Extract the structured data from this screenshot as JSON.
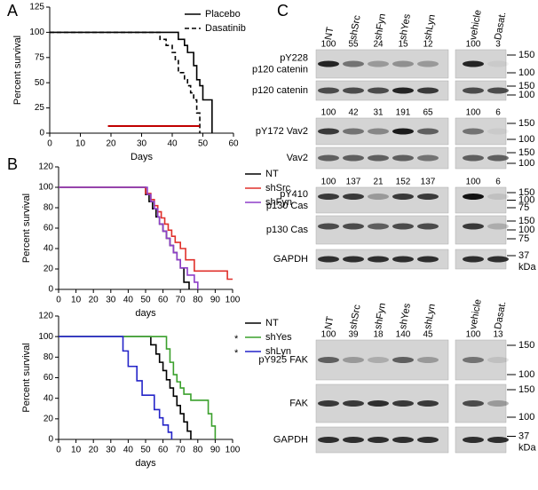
{
  "chart_data": [
    {
      "type": "line",
      "panel": "A",
      "step": true,
      "legend": "upper right",
      "xlabel": "Days",
      "ylabel": "Percent survival",
      "xlim": [
        0,
        60
      ],
      "xticks": [
        0,
        10,
        20,
        30,
        40,
        50,
        60
      ],
      "ylim": [
        0,
        125
      ],
      "yticks": [
        0,
        25,
        50,
        75,
        100,
        125
      ],
      "series": [
        {
          "name": "Placebo",
          "color": "#000000",
          "dash": false,
          "x": [
            0,
            42,
            44,
            45,
            47,
            48,
            49,
            50,
            53
          ],
          "values": [
            100,
            93,
            87,
            80,
            67,
            53,
            47,
            33,
            0
          ]
        },
        {
          "name": "Dasatinib",
          "color": "#000000",
          "dash": true,
          "x": [
            0,
            36,
            38,
            40,
            41,
            42,
            44,
            45,
            46,
            47,
            48,
            49
          ],
          "values": [
            100,
            93,
            87,
            80,
            73,
            60,
            53,
            47,
            40,
            33,
            20,
            0
          ]
        },
        {
          "name": null,
          "color": "#c00000",
          "dash": false,
          "x": [
            19,
            49
          ],
          "values": [
            7,
            7
          ]
        }
      ]
    },
    {
      "type": "line",
      "panel": "B",
      "step": true,
      "legend": "right",
      "xlabel": "days",
      "ylabel": "Percent survival",
      "xlim": [
        0,
        100
      ],
      "xticks": [
        0,
        10,
        20,
        30,
        40,
        50,
        60,
        70,
        80,
        90,
        100
      ],
      "ylim": [
        0,
        120
      ],
      "yticks": [
        0,
        20,
        40,
        60,
        80,
        100,
        120
      ],
      "series": [
        {
          "name": "NT",
          "color": "#000000",
          "x": [
            0,
            50,
            52,
            54,
            56,
            58,
            60,
            62,
            64,
            66,
            68,
            70,
            72,
            75
          ],
          "values": [
            100,
            93,
            86,
            79,
            71,
            64,
            57,
            50,
            43,
            36,
            29,
            21,
            7,
            0
          ]
        },
        {
          "name": "shSrc",
          "color": "#e0302b",
          "x": [
            0,
            50,
            53,
            55,
            57,
            59,
            61,
            63,
            65,
            67,
            70,
            73,
            78,
            97,
            100
          ],
          "values": [
            100,
            94,
            88,
            82,
            76,
            70,
            64,
            58,
            52,
            46,
            40,
            29,
            18,
            10,
            10
          ]
        },
        {
          "name": "shFyn",
          "color": "#8e3fc8",
          "x": [
            0,
            51,
            53,
            55,
            57,
            58,
            60,
            62,
            64,
            66,
            68,
            70,
            74,
            78,
            80
          ],
          "values": [
            100,
            93,
            86,
            79,
            71,
            64,
            57,
            50,
            43,
            36,
            29,
            21,
            14,
            7,
            0
          ]
        }
      ]
    },
    {
      "type": "line",
      "step": true,
      "legend": "right",
      "xlabel": "days",
      "ylabel": "Percent survival",
      "xlim": [
        0,
        100
      ],
      "xticks": [
        0,
        10,
        20,
        30,
        40,
        50,
        60,
        70,
        80,
        90,
        100
      ],
      "ylim": [
        0,
        120
      ],
      "yticks": [
        0,
        20,
        40,
        60,
        80,
        100,
        120
      ],
      "series": [
        {
          "name": "NT",
          "color": "#000000",
          "x": [
            0,
            53,
            56,
            58,
            60,
            62,
            64,
            66,
            68,
            70,
            72,
            74,
            76
          ],
          "values": [
            100,
            92,
            83,
            75,
            67,
            58,
            50,
            42,
            33,
            25,
            17,
            8,
            0
          ]
        },
        {
          "name": "shYes",
          "note": "*",
          "color": "#3aa02c",
          "x": [
            0,
            62,
            64,
            66,
            68,
            70,
            72,
            76,
            86,
            88,
            90
          ],
          "values": [
            100,
            88,
            75,
            63,
            56,
            50,
            44,
            38,
            25,
            13,
            0
          ]
        },
        {
          "name": "shLyn",
          "note": "*",
          "color": "#2424c8",
          "x": [
            0,
            37,
            40,
            45,
            48,
            55,
            58,
            60,
            63,
            65
          ],
          "values": [
            100,
            86,
            71,
            57,
            43,
            29,
            21,
            14,
            7,
            0
          ]
        }
      ]
    }
  ],
  "blots": {
    "panel": "C",
    "sections": [
      {
        "lanes": [
          "NT",
          "shSrc",
          "shFyn",
          "shYes",
          "shLyn",
          "vehicle",
          "Dasat."
        ],
        "rows": [
          {
            "label": [
              "pY228",
              "p120 catenin"
            ],
            "quant": [
              100,
              55,
              24,
              15,
              12,
              100,
              3
            ],
            "markers": [
              150,
              100
            ]
          },
          {
            "label": [
              "p120 catenin"
            ],
            "markers": [
              150,
              100
            ]
          },
          {
            "label": [
              "pY172 Vav2"
            ],
            "quant": [
              100,
              42,
              31,
              191,
              65,
              100,
              6
            ],
            "markers": [
              150,
              100
            ]
          },
          {
            "label": [
              "Vav2"
            ],
            "markers": [
              150,
              100
            ]
          },
          {
            "label": [
              "pY410",
              "p130 Cas"
            ],
            "quant": [
              100,
              137,
              21,
              152,
              137,
              100,
              6
            ],
            "markers": [
              150,
              100,
              75
            ]
          },
          {
            "label": [
              "p130 Cas"
            ],
            "markers": [
              150,
              100,
              75
            ]
          },
          {
            "label": [
              "GAPDH"
            ],
            "markers": [
              37
            ],
            "unit": "kDa"
          }
        ]
      },
      {
        "lanes": [
          "NT",
          "shSrc",
          "shFyn",
          "shYes",
          "shLyn",
          "vehicle",
          "Dasat."
        ],
        "rows": [
          {
            "label": [
              "pY925 FAK"
            ],
            "quant": [
              100,
              39,
              18,
              140,
              45,
              100,
              13
            ],
            "markers": [
              150,
              100
            ]
          },
          {
            "label": [
              "FAK"
            ],
            "markers": [
              150,
              100
            ]
          },
          {
            "label": [
              "GAPDH"
            ],
            "markers": [
              37
            ],
            "unit": "kDa"
          }
        ]
      }
    ]
  }
}
